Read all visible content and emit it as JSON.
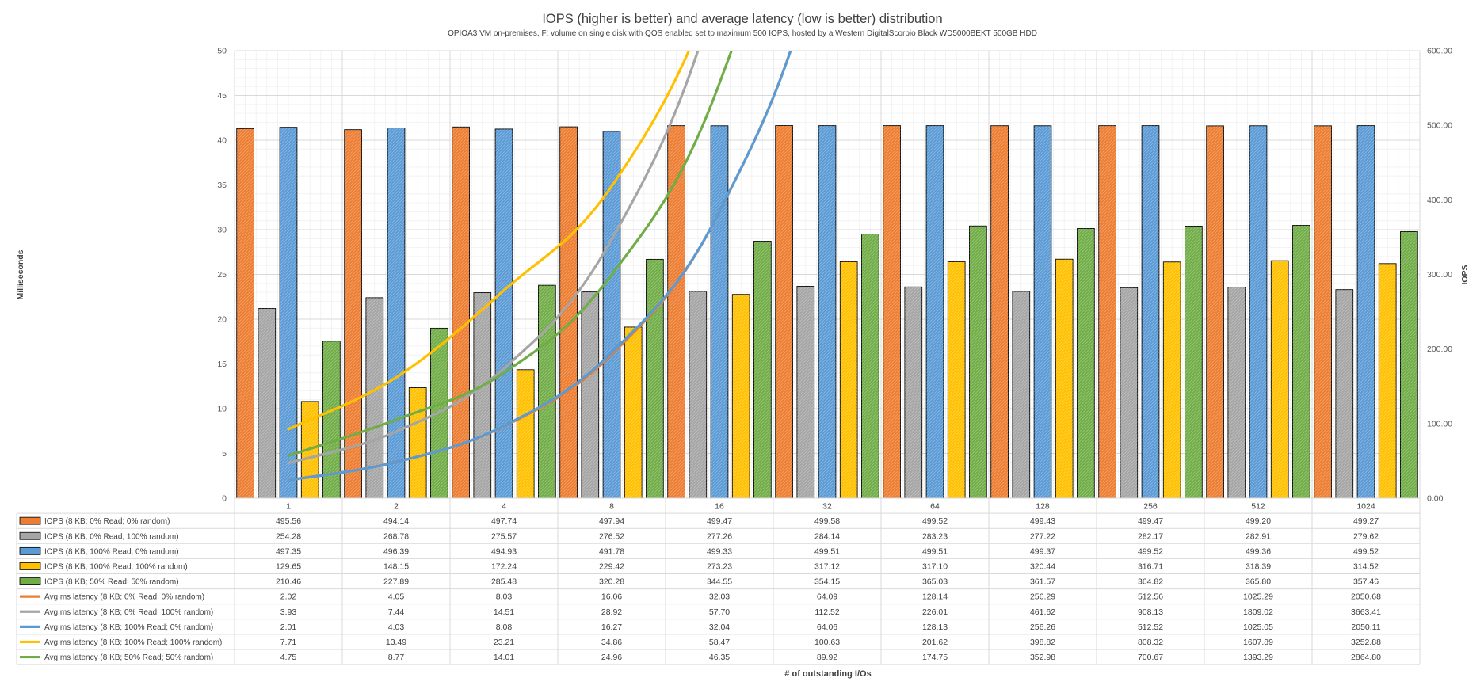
{
  "chart_data": {
    "type": "bar",
    "title": "IOPS (higher is better) and average latency (low is better) distribution",
    "subtitle": "OPIOA3 VM on-premises, F: volume on single disk with QOS enabled set to maximum 500 IOPS, hosted by a Western DigitalScorpio Black WD5000BEKT 500GB HDD",
    "xlabel": "# of outstanding I/Os",
    "ylabel_left": "Milliseconds",
    "ylabel_right": "IOPS",
    "ylim_left": [
      0,
      50
    ],
    "ylim_right": [
      0,
      600
    ],
    "yticks_left": [
      "0",
      "5",
      "10",
      "15",
      "20",
      "25",
      "30",
      "35",
      "40",
      "45",
      "50"
    ],
    "yticks_right": [
      "0.00",
      "100.00",
      "200.00",
      "300.00",
      "400.00",
      "500.00",
      "600.00"
    ],
    "grid": true,
    "legend": "table-below",
    "categories": [
      "1",
      "2",
      "4",
      "8",
      "16",
      "32",
      "64",
      "128",
      "256",
      "512",
      "1024"
    ],
    "bar_series": [
      {
        "name": "IOPS (8 KB; 0% Read; 0% random)",
        "color": "#ED7D31",
        "values": [
          495.56,
          494.14,
          497.74,
          497.94,
          499.47,
          499.58,
          499.52,
          499.43,
          499.47,
          499.2,
          499.27
        ],
        "display": [
          "495.56",
          "494.14",
          "497.74",
          "497.94",
          "499.47",
          "499.58",
          "499.52",
          "499.43",
          "499.47",
          "499.20",
          "499.27"
        ]
      },
      {
        "name": "IOPS (8 KB; 0% Read; 100% random)",
        "color": "#A5A5A5",
        "values": [
          254.28,
          268.78,
          275.57,
          276.52,
          277.26,
          284.14,
          283.23,
          277.22,
          282.17,
          282.91,
          279.62
        ],
        "display": [
          "254.28",
          "268.78",
          "275.57",
          "276.52",
          "277.26",
          "284.14",
          "283.23",
          "277.22",
          "282.17",
          "282.91",
          "279.62"
        ]
      },
      {
        "name": "IOPS (8 KB; 100% Read; 0% random)",
        "color": "#5B9BD5",
        "values": [
          497.35,
          496.39,
          494.93,
          491.78,
          499.33,
          499.51,
          499.51,
          499.37,
          499.52,
          499.36,
          499.52
        ],
        "display": [
          "497.35",
          "496.39",
          "494.93",
          "491.78",
          "499.33",
          "499.51",
          "499.51",
          "499.37",
          "499.52",
          "499.36",
          "499.52"
        ]
      },
      {
        "name": "IOPS (8 KB; 100% Read; 100% random)",
        "color": "#FFC000",
        "values": [
          129.65,
          148.15,
          172.24,
          229.42,
          273.23,
          317.12,
          317.1,
          320.44,
          316.71,
          318.39,
          314.52
        ],
        "display": [
          "129.65",
          "148.15",
          "172.24",
          "229.42",
          "273.23",
          "317.12",
          "317.10",
          "320.44",
          "316.71",
          "318.39",
          "314.52"
        ]
      },
      {
        "name": "IOPS (8 KB; 50% Read; 50% random)",
        "color": "#70AD47",
        "values": [
          210.46,
          227.89,
          285.48,
          320.28,
          344.55,
          354.15,
          365.03,
          361.57,
          364.82,
          365.8,
          357.46
        ],
        "display": [
          "210.46",
          "227.89",
          "285.48",
          "320.28",
          "344.55",
          "354.15",
          "365.03",
          "361.57",
          "364.82",
          "365.80",
          "357.46"
        ]
      }
    ],
    "line_series": [
      {
        "name": "Avg ms latency (8 KB; 0% Read; 0% random)",
        "color": "#ED7D31",
        "values": [
          2.02,
          4.05,
          8.03,
          16.06,
          32.03,
          64.09,
          128.14,
          256.29,
          512.56,
          1025.29,
          2050.68
        ],
        "display": [
          "2.02",
          "4.05",
          "8.03",
          "16.06",
          "32.03",
          "64.09",
          "128.14",
          "256.29",
          "512.56",
          "1025.29",
          "2050.68"
        ]
      },
      {
        "name": "Avg ms latency (8 KB; 0% Read; 100% random)",
        "color": "#A5A5A5",
        "values": [
          3.93,
          7.44,
          14.51,
          28.92,
          57.7,
          112.52,
          226.01,
          461.62,
          908.13,
          1809.02,
          3663.41
        ],
        "display": [
          "3.93",
          "7.44",
          "14.51",
          "28.92",
          "57.70",
          "112.52",
          "226.01",
          "461.62",
          "908.13",
          "1809.02",
          "3663.41"
        ]
      },
      {
        "name": "Avg ms latency (8 KB; 100% Read; 0% random)",
        "color": "#5B9BD5",
        "values": [
          2.01,
          4.03,
          8.08,
          16.27,
          32.04,
          64.06,
          128.13,
          256.26,
          512.52,
          1025.05,
          2050.11
        ],
        "display": [
          "2.01",
          "4.03",
          "8.08",
          "16.27",
          "32.04",
          "64.06",
          "128.13",
          "256.26",
          "512.52",
          "1025.05",
          "2050.11"
        ]
      },
      {
        "name": "Avg ms latency (8 KB; 100% Read; 100% random)",
        "color": "#FFC000",
        "values": [
          7.71,
          13.49,
          23.21,
          34.86,
          58.47,
          100.63,
          201.62,
          398.82,
          808.32,
          1607.89,
          3252.88
        ],
        "display": [
          "7.71",
          "13.49",
          "23.21",
          "34.86",
          "58.47",
          "100.63",
          "201.62",
          "398.82",
          "808.32",
          "1607.89",
          "3252.88"
        ]
      },
      {
        "name": "Avg ms latency (8 KB; 50% Read; 50% random)",
        "color": "#70AD47",
        "values": [
          4.75,
          8.77,
          14.01,
          24.96,
          46.35,
          89.92,
          174.75,
          352.98,
          700.67,
          1393.29,
          2864.8
        ],
        "display": [
          "4.75",
          "8.77",
          "14.01",
          "24.96",
          "46.35",
          "89.92",
          "174.75",
          "352.98",
          "700.67",
          "1393.29",
          "2864.80"
        ]
      }
    ]
  }
}
